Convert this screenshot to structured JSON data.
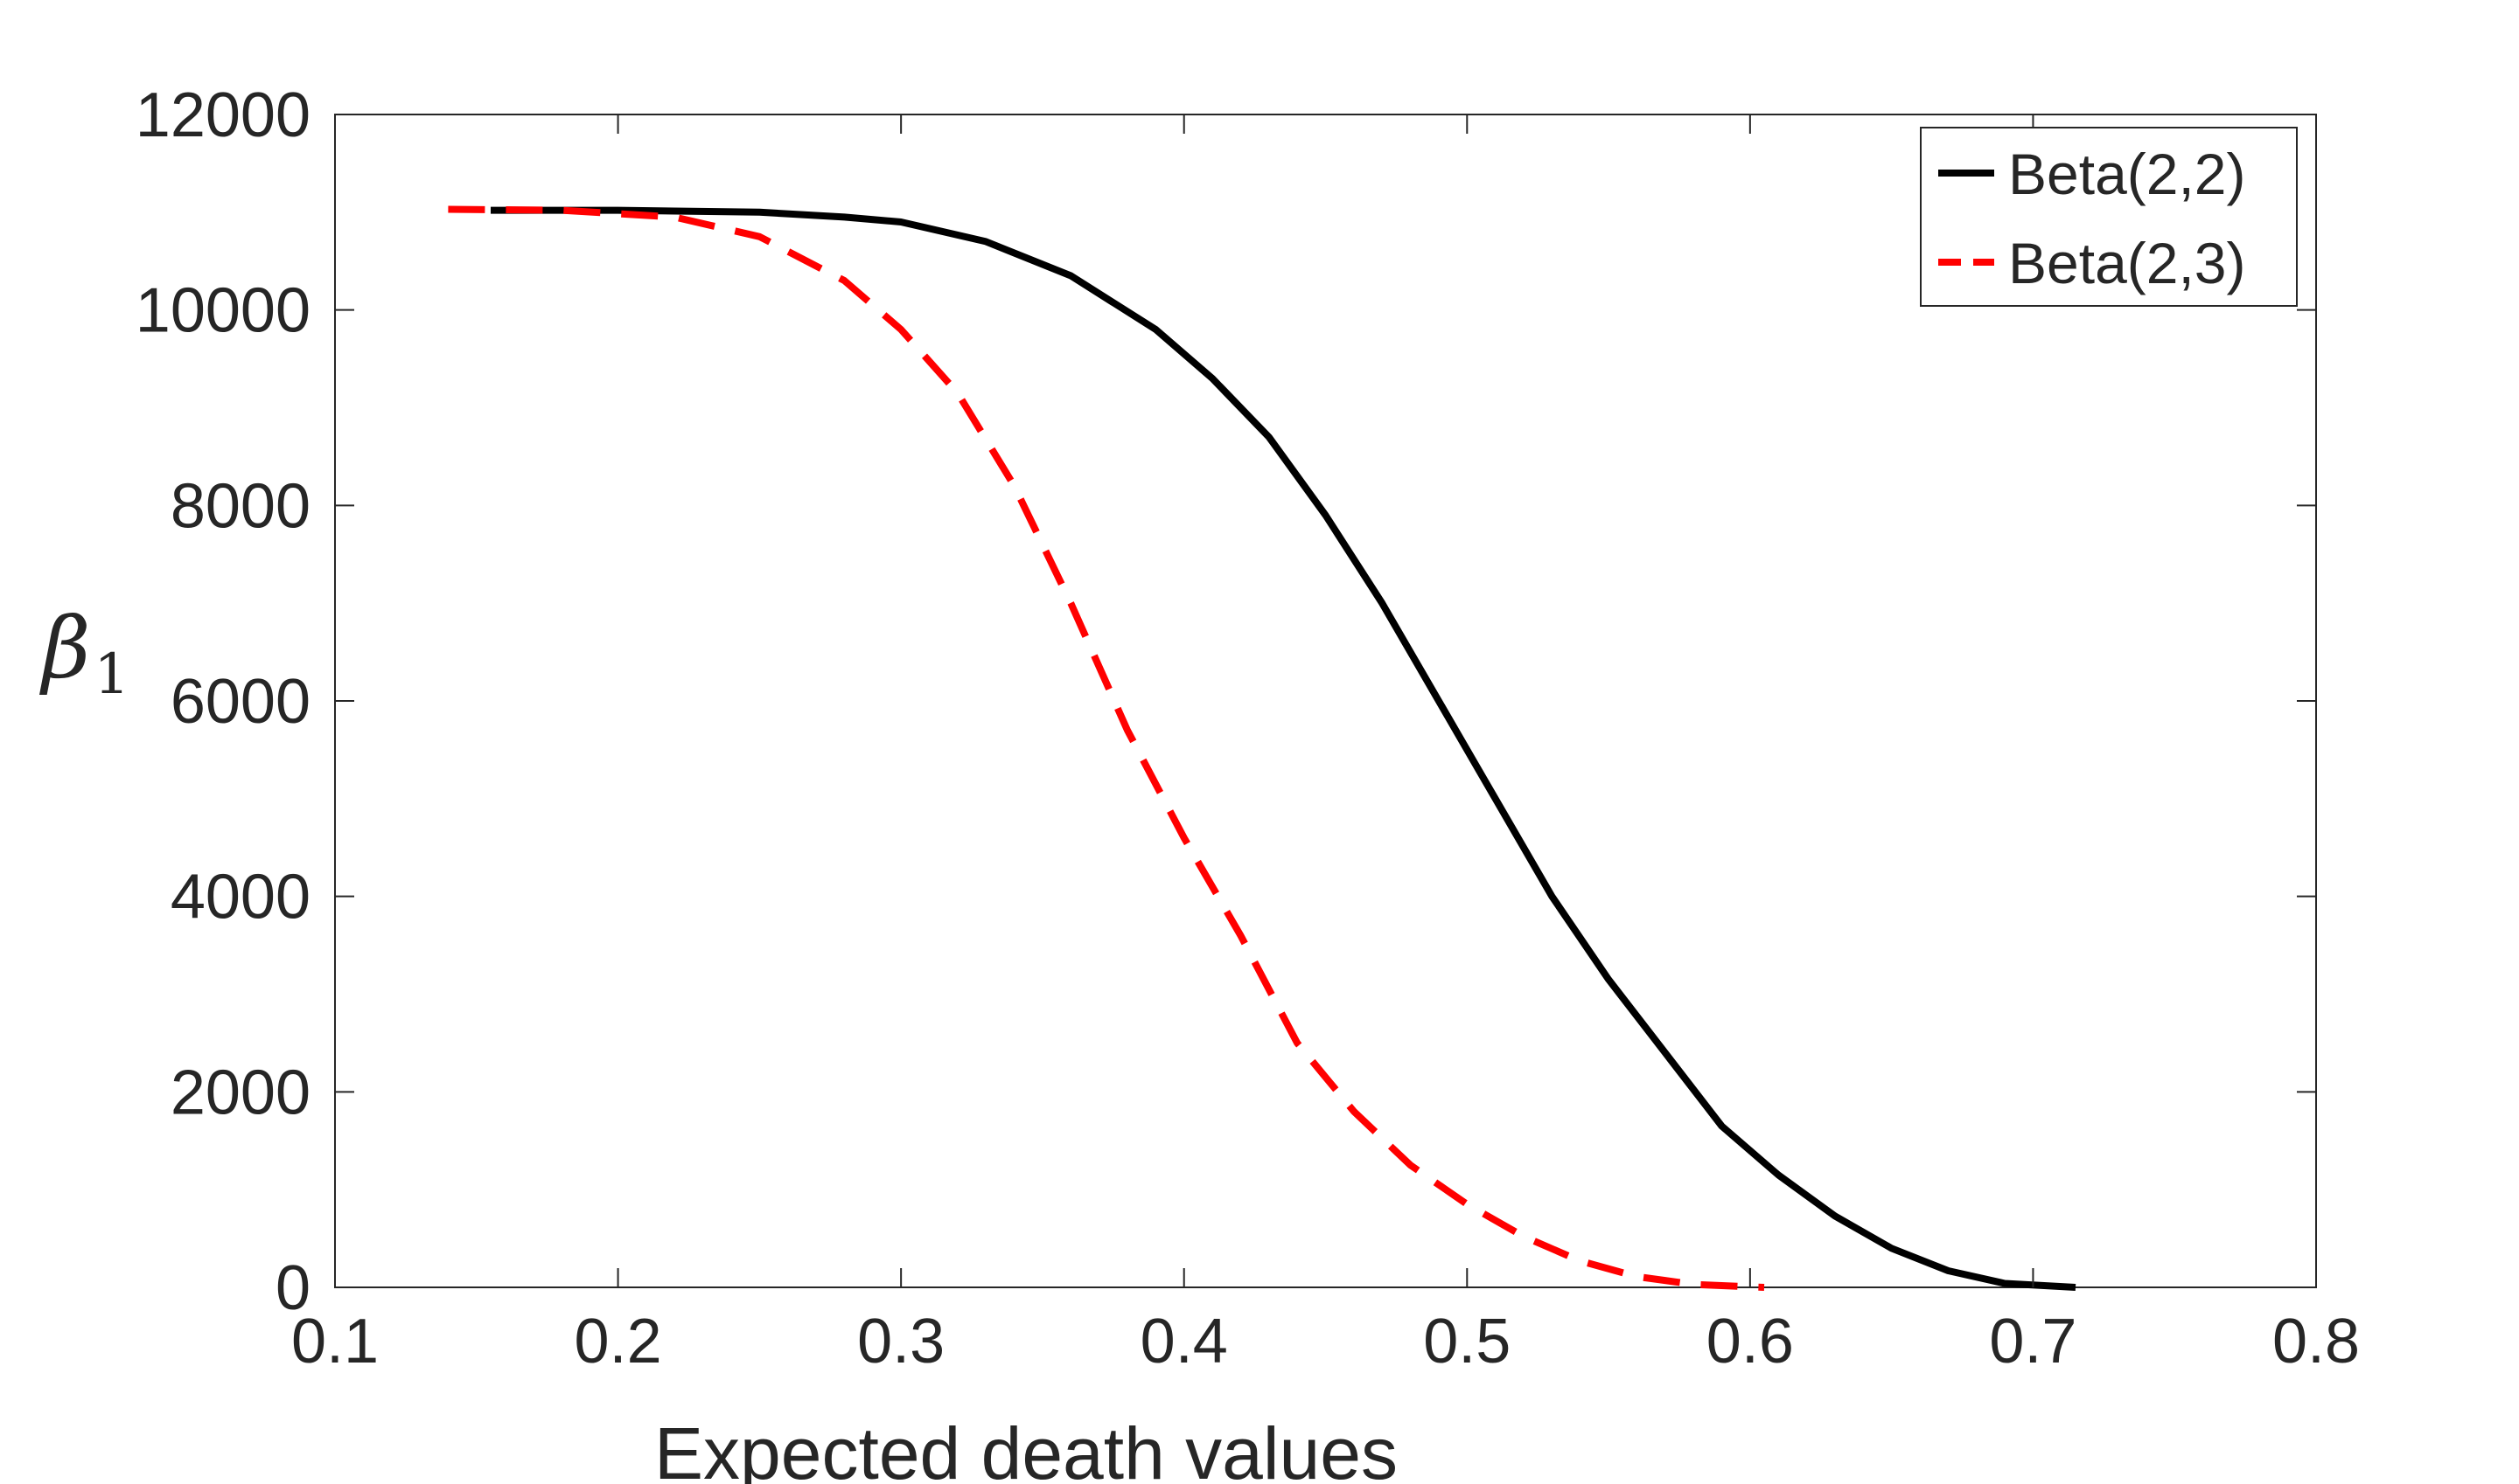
{
  "chart_data": {
    "type": "line",
    "title": "",
    "xlabel": "Expected death values",
    "ylabel": "β",
    "ylabel_subscript": "1",
    "xlim": [
      0.1,
      0.8
    ],
    "ylim": [
      0,
      12000
    ],
    "xticks": [
      0.1,
      0.2,
      0.3,
      0.4,
      0.5,
      0.6,
      0.7,
      0.8
    ],
    "xtick_labels": [
      "0.1",
      "0.2",
      "0.3",
      "0.4",
      "0.5",
      "0.6",
      "0.7",
      "0.8"
    ],
    "yticks": [
      0,
      2000,
      4000,
      6000,
      8000,
      10000,
      12000
    ],
    "ytick_labels": [
      "0",
      "2000",
      "4000",
      "6000",
      "8000",
      "10000",
      "12000"
    ],
    "grid": false,
    "legend_position": "top-right",
    "series": [
      {
        "name": "Beta(2,2)",
        "style": "solid",
        "color": "#000000",
        "x": [
          0.155,
          0.2,
          0.25,
          0.28,
          0.3,
          0.33,
          0.36,
          0.39,
          0.41,
          0.43,
          0.45,
          0.47,
          0.49,
          0.51,
          0.53,
          0.55,
          0.57,
          0.59,
          0.61,
          0.63,
          0.65,
          0.67,
          0.69,
          0.715
        ],
        "y": [
          11020,
          11020,
          11000,
          10950,
          10900,
          10700,
          10350,
          9800,
          9300,
          8700,
          7900,
          7000,
          6000,
          5000,
          4000,
          3150,
          2400,
          1650,
          1150,
          730,
          400,
          170,
          40,
          0
        ]
      },
      {
        "name": "Beta(2,3)",
        "style": "dashed",
        "color": "#ff0000",
        "x": [
          0.14,
          0.18,
          0.22,
          0.25,
          0.28,
          0.3,
          0.32,
          0.34,
          0.36,
          0.38,
          0.4,
          0.42,
          0.44,
          0.46,
          0.48,
          0.5,
          0.52,
          0.54,
          0.56,
          0.58,
          0.6,
          0.605
        ],
        "y": [
          11030,
          11020,
          10950,
          10750,
          10300,
          9800,
          9150,
          8200,
          7000,
          5700,
          4600,
          3600,
          2500,
          1800,
          1250,
          850,
          520,
          270,
          110,
          30,
          5,
          0
        ]
      }
    ]
  }
}
